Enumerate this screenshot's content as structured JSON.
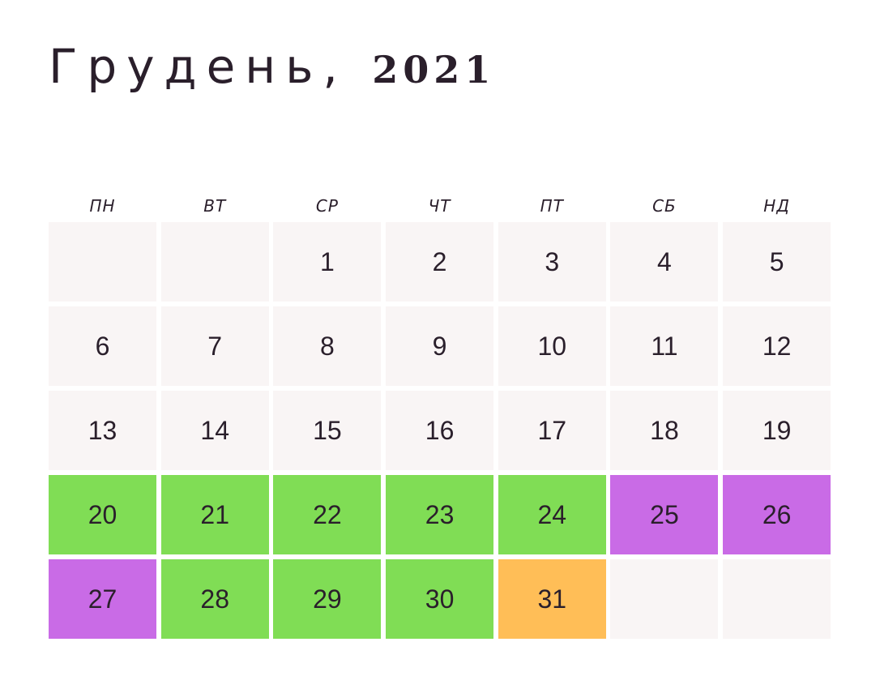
{
  "title": {
    "month": "Грудень,",
    "year": "2021"
  },
  "weekdays": [
    "ПН",
    "ВТ",
    "СР",
    "ЧТ",
    "ПТ",
    "СБ",
    "НД"
  ],
  "colors": {
    "default": "#f9f5f5",
    "green": "#80dd55",
    "purple": "#c96be6",
    "orange": "#ffbe57"
  },
  "cells": [
    {
      "day": "",
      "status": "default"
    },
    {
      "day": "",
      "status": "default"
    },
    {
      "day": "1",
      "status": "default"
    },
    {
      "day": "2",
      "status": "default"
    },
    {
      "day": "3",
      "status": "default"
    },
    {
      "day": "4",
      "status": "default"
    },
    {
      "day": "5",
      "status": "default"
    },
    {
      "day": "6",
      "status": "default"
    },
    {
      "day": "7",
      "status": "default"
    },
    {
      "day": "8",
      "status": "default"
    },
    {
      "day": "9",
      "status": "default"
    },
    {
      "day": "10",
      "status": "default"
    },
    {
      "day": "11",
      "status": "default"
    },
    {
      "day": "12",
      "status": "default"
    },
    {
      "day": "13",
      "status": "default"
    },
    {
      "day": "14",
      "status": "default"
    },
    {
      "day": "15",
      "status": "default"
    },
    {
      "day": "16",
      "status": "default"
    },
    {
      "day": "17",
      "status": "default"
    },
    {
      "day": "18",
      "status": "default"
    },
    {
      "day": "19",
      "status": "default"
    },
    {
      "day": "20",
      "status": "green"
    },
    {
      "day": "21",
      "status": "green"
    },
    {
      "day": "22",
      "status": "green"
    },
    {
      "day": "23",
      "status": "green"
    },
    {
      "day": "24",
      "status": "green"
    },
    {
      "day": "25",
      "status": "purple"
    },
    {
      "day": "26",
      "status": "purple"
    },
    {
      "day": "27",
      "status": "purple"
    },
    {
      "day": "28",
      "status": "green"
    },
    {
      "day": "29",
      "status": "green"
    },
    {
      "day": "30",
      "status": "green"
    },
    {
      "day": "31",
      "status": "orange"
    },
    {
      "day": "",
      "status": "default"
    },
    {
      "day": "",
      "status": "default"
    }
  ]
}
